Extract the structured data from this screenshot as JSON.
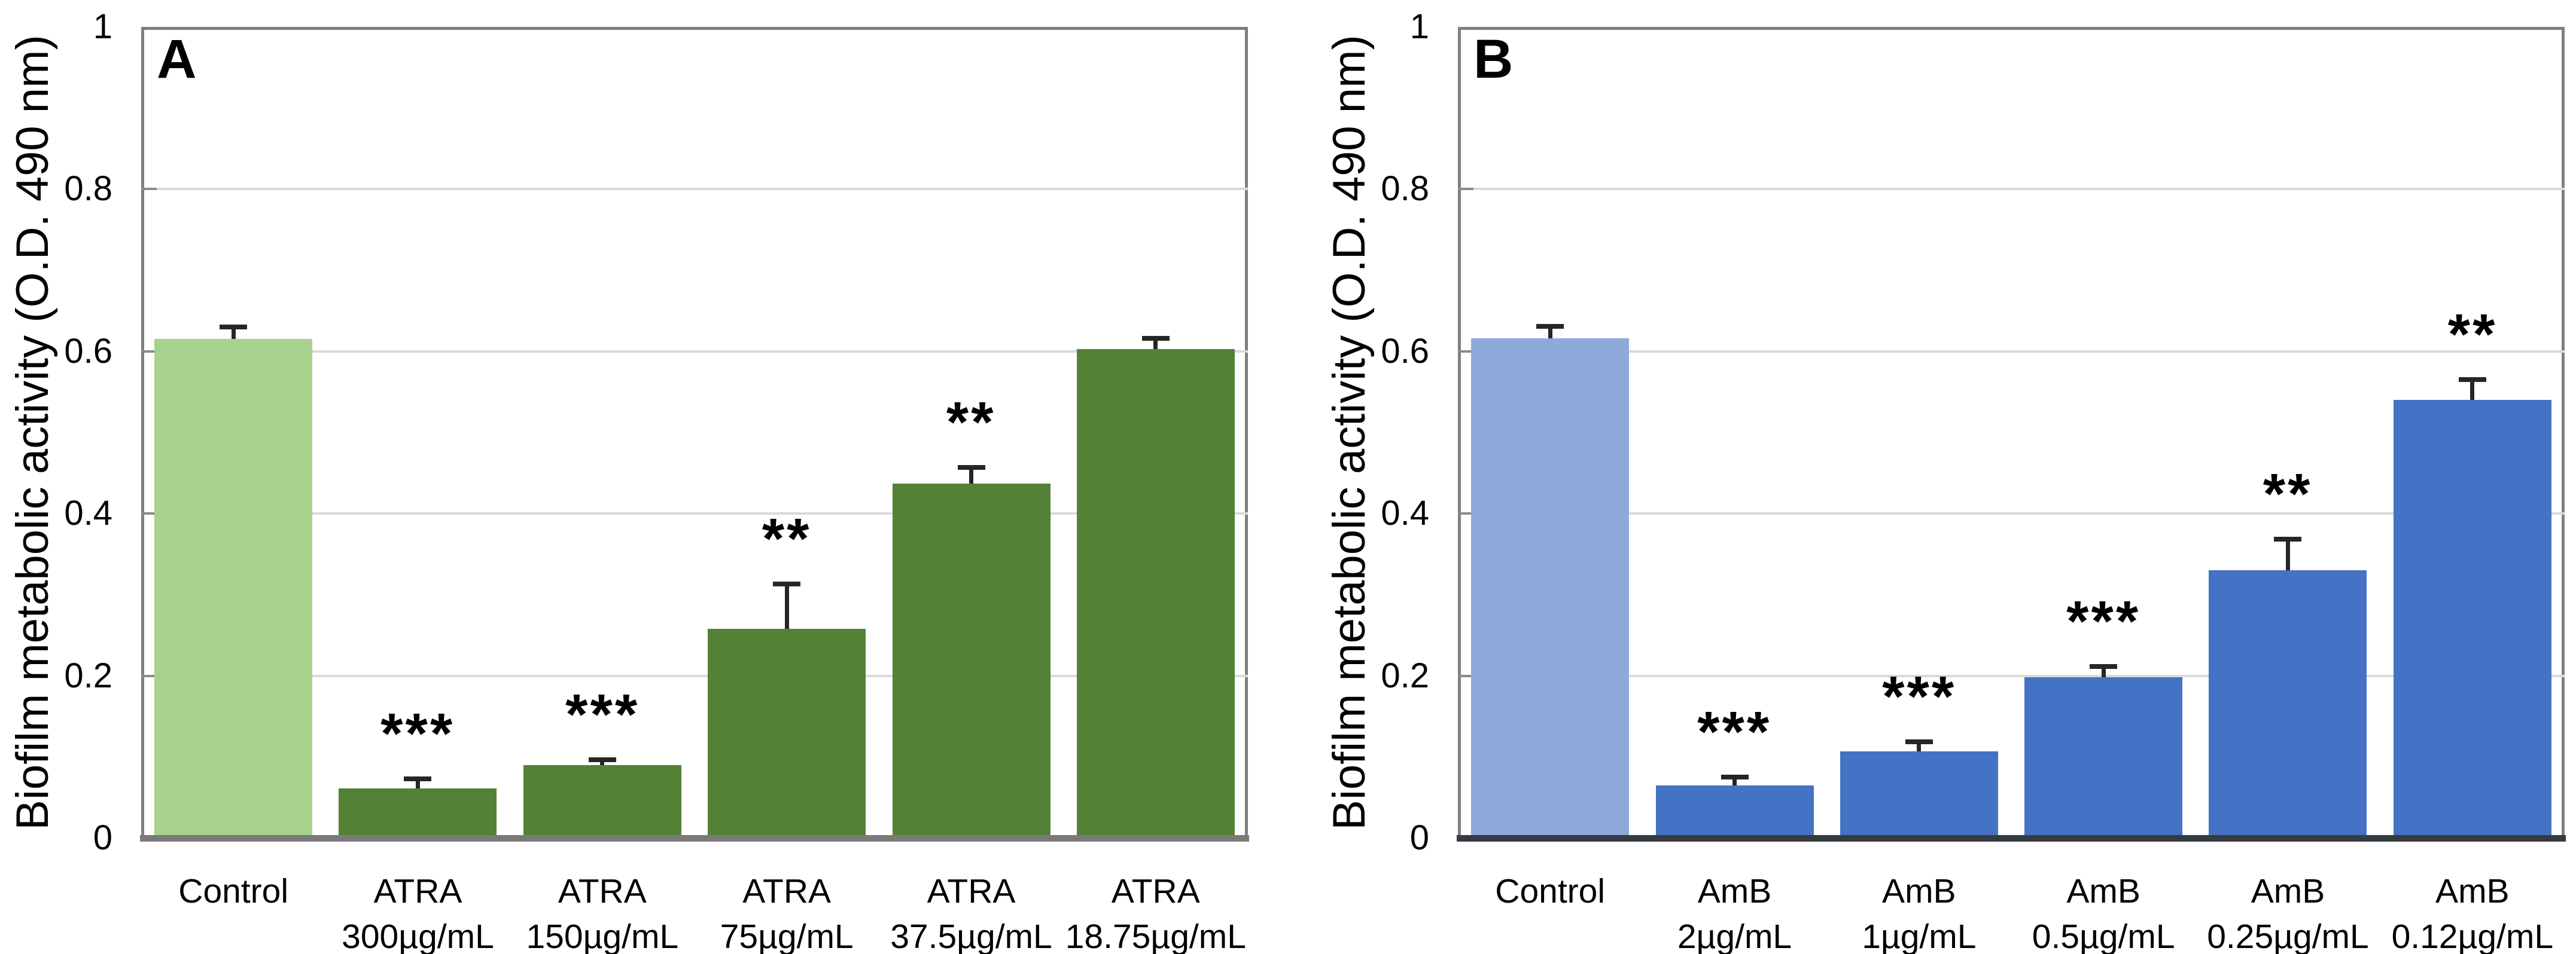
{
  "figure": {
    "background": "#ffffff",
    "frame_color": "#7f7f7f",
    "gridline_color": "#d9d9d9",
    "tick_color": "#8a8a8a",
    "error_bar_color": "#262626",
    "text_color": "#000000"
  },
  "chart_data": [
    {
      "type": "bar",
      "panel_label": "A",
      "title": "",
      "xlabel": "",
      "ylabel": "Biofilm metabolic activity (O.D. 490 nm)",
      "ylim": [
        0,
        1
      ],
      "ytick_labels": [
        "0",
        "0.2",
        "0.4",
        "0.6",
        "0.8",
        "1"
      ],
      "ytick_values": [
        0,
        0.2,
        0.4,
        0.6,
        0.8,
        1
      ],
      "grid": true,
      "legend_position": "none",
      "categories": [
        "Control",
        "ATRA 300µg/mL",
        "ATRA 150µg/mL",
        "ATRA 75µg/mL",
        "ATRA 37.5µg/mL",
        "ATRA 18.75µg/mL"
      ],
      "category_lines": [
        [
          "Control",
          ""
        ],
        [
          "ATRA",
          "300µg/mL"
        ],
        [
          "ATRA",
          "150µg/mL"
        ],
        [
          "ATRA",
          "75µg/mL"
        ],
        [
          "ATRA",
          "37.5µg/mL"
        ],
        [
          "ATRA",
          "18.75µg/mL"
        ]
      ],
      "values": [
        0.615,
        0.061,
        0.09,
        0.258,
        0.437,
        0.603
      ],
      "errors": [
        0.015,
        0.012,
        0.007,
        0.055,
        0.02,
        0.013
      ],
      "significance": [
        "",
        "***",
        "***",
        "**",
        "**",
        ""
      ],
      "bar_colors": [
        "#a9d18e",
        "#538135",
        "#538135",
        "#538135",
        "#538135",
        "#538135"
      ],
      "axis_line_color": "#7a7a7a"
    },
    {
      "type": "bar",
      "panel_label": "B",
      "title": "",
      "xlabel": "",
      "ylabel": "Biofilm metabolic activity (O.D. 490 nm)",
      "ylim": [
        0,
        1
      ],
      "ytick_labels": [
        "0",
        "0.2",
        "0.4",
        "0.6",
        "0.8",
        "1"
      ],
      "ytick_values": [
        0,
        0.2,
        0.4,
        0.6,
        0.8,
        1
      ],
      "grid": true,
      "legend_position": "none",
      "categories": [
        "Control",
        "AmB 2µg/mL",
        "AmB 1µg/mL",
        "AmB 0.5µg/mL",
        "AmB 0.25µg/mL",
        "AmB 0.12µg/mL"
      ],
      "category_lines": [
        [
          "Control",
          ""
        ],
        [
          "AmB",
          "2µg/mL"
        ],
        [
          "AmB",
          "1µg/mL"
        ],
        [
          "AmB",
          "0.5µg/mL"
        ],
        [
          "AmB",
          "0.25µg/mL"
        ],
        [
          "AmB",
          "0.12µg/mL"
        ]
      ],
      "values": [
        0.616,
        0.065,
        0.107,
        0.198,
        0.33,
        0.54
      ],
      "errors": [
        0.015,
        0.01,
        0.012,
        0.013,
        0.038,
        0.025
      ],
      "significance": [
        "",
        "***",
        "***",
        "***",
        "**",
        "**"
      ],
      "bar_colors": [
        "#8eaadb",
        "#4472c4",
        "#4472c4",
        "#4472c4",
        "#4472c4",
        "#4472c4"
      ],
      "axis_line_color": "#363b42"
    }
  ]
}
